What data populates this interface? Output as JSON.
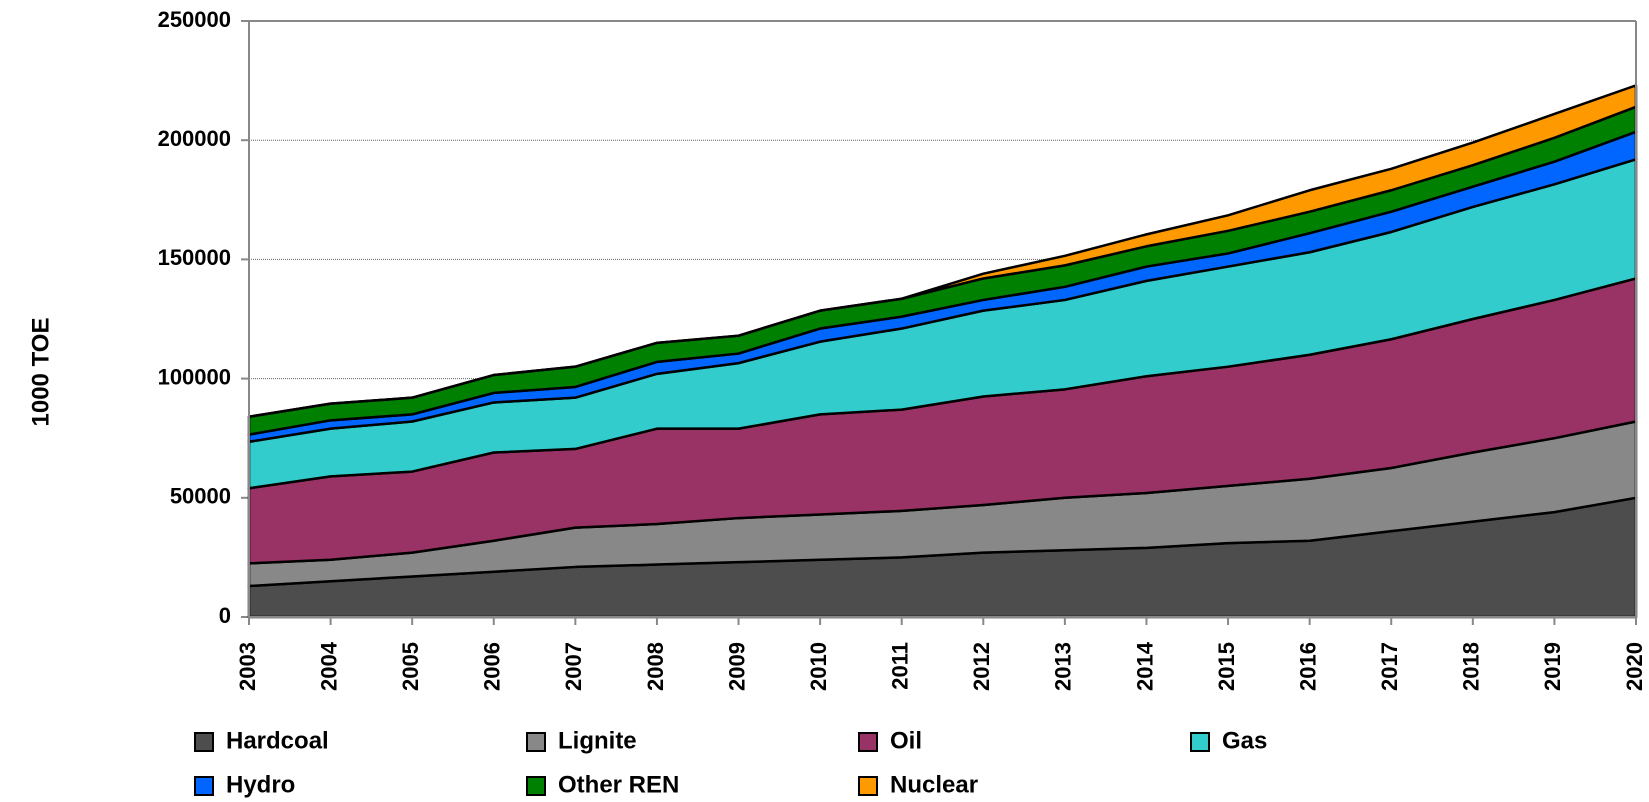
{
  "chart_data": {
    "type": "stacked_area",
    "y_label": "1000 TOE",
    "categories": [
      "2003",
      "2004",
      "2005",
      "2006",
      "2007",
      "2008",
      "2009",
      "2010",
      "2011",
      "2012",
      "2013",
      "2014",
      "2015",
      "2016",
      "2017",
      "2018",
      "2019",
      "2020"
    ],
    "series": [
      {
        "name": "Hardcoal",
        "color": "#4d4d4d",
        "values": [
          13000,
          15000,
          17000,
          19000,
          21000,
          22000,
          23000,
          24000,
          25000,
          27000,
          28000,
          29000,
          31000,
          32000,
          36000,
          40000,
          44000,
          50000
        ]
      },
      {
        "name": "Lignite",
        "color": "#888888",
        "values": [
          9500,
          9000,
          10000,
          13000,
          16500,
          17000,
          18500,
          19000,
          19500,
          20000,
          22000,
          23000,
          24000,
          26000,
          26500,
          29000,
          31000,
          32000
        ]
      },
      {
        "name": "Oil",
        "color": "#993366",
        "values": [
          31500,
          35000,
          34000,
          37000,
          33000,
          40000,
          37500,
          42000,
          42500,
          45500,
          45500,
          49000,
          50000,
          52000,
          54000,
          56000,
          58000,
          60000
        ]
      },
      {
        "name": "Gas",
        "color": "#33cccc",
        "values": [
          19500,
          20000,
          21000,
          21000,
          21500,
          23000,
          27500,
          30500,
          34000,
          36000,
          37500,
          40000,
          42000,
          43000,
          45000,
          47000,
          48500,
          50000
        ]
      },
      {
        "name": "Hydro",
        "color": "#0066ff",
        "values": [
          3000,
          3500,
          3000,
          4000,
          4500,
          5000,
          4000,
          5500,
          5000,
          4500,
          5500,
          6000,
          5500,
          8000,
          8500,
          8500,
          9500,
          11500
        ]
      },
      {
        "name": "Other REN",
        "color": "#008000",
        "values": [
          7500,
          7000,
          7000,
          7500,
          8500,
          8000,
          7500,
          7500,
          7500,
          9000,
          9000,
          8500,
          9500,
          9000,
          9000,
          9000,
          10000,
          10500
        ]
      },
      {
        "name": "Nuclear",
        "color": "#ff9900",
        "values": [
          0,
          0,
          0,
          0,
          0,
          0,
          0,
          0,
          0,
          2000,
          4000,
          5000,
          6500,
          9000,
          9000,
          9500,
          10000,
          9000
        ]
      }
    ],
    "ylim": [
      0,
      250000
    ],
    "yticks": [
      0,
      50000,
      100000,
      150000,
      200000,
      250000
    ],
    "grid": true
  }
}
